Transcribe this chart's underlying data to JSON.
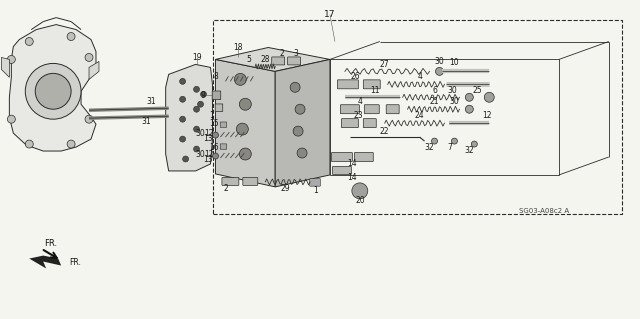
{
  "bg_color": "#f5f5f0",
  "fig_width": 6.4,
  "fig_height": 3.19,
  "diagram_code": "SG03-A08c2 A",
  "line_color": "#2a2a2a",
  "label_fontsize": 5.5,
  "lw": 0.7
}
